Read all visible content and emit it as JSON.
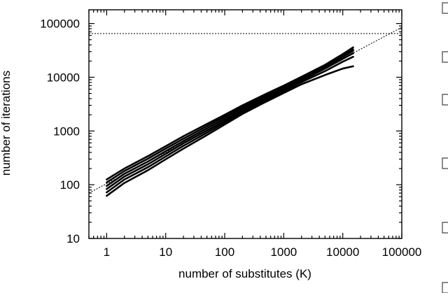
{
  "chart_data": {
    "type": "line",
    "xlabel": "number of substitutes (K)",
    "ylabel": "number of iterations",
    "xscale": "log",
    "yscale": "log",
    "xlim": [
      0.5,
      100000
    ],
    "ylim": [
      10,
      180000
    ],
    "x_ticks": [
      1,
      10,
      100,
      1000,
      10000,
      100000
    ],
    "x_tick_labels": [
      "1",
      "10",
      "100",
      "1000",
      "10000",
      "100000"
    ],
    "y_ticks": [
      10,
      100,
      1000,
      10000,
      100000
    ],
    "y_tick_labels": [
      "10",
      "100",
      "1000",
      "10000",
      "100000"
    ],
    "grid": false,
    "legend": "none",
    "x": [
      1,
      2,
      5,
      10,
      20,
      50,
      100,
      200,
      500,
      1000,
      2000,
      5000,
      10000,
      15000
    ],
    "series": [
      {
        "values": [
          125,
          200,
          340,
          520,
          800,
          1350,
          2000,
          3000,
          4900,
          7000,
          10200,
          17000,
          27000,
          36000
        ]
      },
      {
        "values": [
          110,
          180,
          305,
          470,
          720,
          1230,
          1850,
          2800,
          4600,
          6700,
          9800,
          16300,
          25500,
          33000
        ]
      },
      {
        "values": [
          95,
          160,
          270,
          420,
          650,
          1120,
          1700,
          2600,
          4300,
          6300,
          9300,
          15400,
          24000,
          31000
        ]
      },
      {
        "values": [
          83,
          142,
          240,
          375,
          590,
          1020,
          1560,
          2420,
          4000,
          5900,
          8700,
          14500,
          22000,
          28000
        ]
      },
      {
        "values": [
          72,
          125,
          212,
          335,
          530,
          930,
          1440,
          2250,
          3750,
          5500,
          8100,
          13000,
          19500,
          24000
        ]
      },
      {
        "values": [
          62,
          108,
          186,
          297,
          470,
          840,
          1320,
          2080,
          3500,
          5100,
          7400,
          11000,
          14500,
          16000
        ]
      }
    ],
    "reference_lines": [
      {
        "style": "dotted",
        "kind": "horizontal",
        "y": 65000
      },
      {
        "style": "dotted",
        "kind": "power-law",
        "x": [
          0.5,
          100000
        ],
        "y": [
          70,
          85000
        ]
      }
    ]
  }
}
